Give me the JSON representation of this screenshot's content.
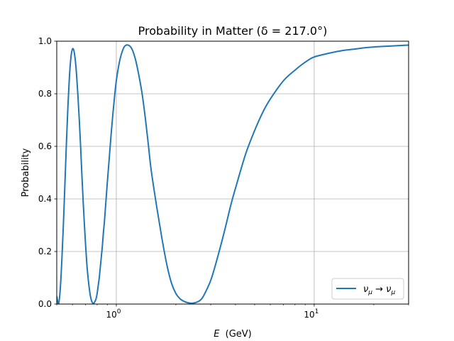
{
  "chart_data": {
    "type": "line",
    "title": "Probability in Matter (δ = 217.0°)",
    "xlabel": "E (GeV)",
    "xlabel_symbol": "E",
    "xlabel_unit": "(GeV)",
    "ylabel": "Probability",
    "x_scale": "log",
    "xlim": [
      0.5,
      30
    ],
    "ylim": [
      0,
      1
    ],
    "grid": true,
    "legend_position": "lower-right",
    "x_ticks": [
      {
        "value": 1,
        "base": "10",
        "exp": "0"
      },
      {
        "value": 10,
        "base": "10",
        "exp": "1"
      }
    ],
    "y_ticks": [
      {
        "value": 0,
        "label": "0.0"
      },
      {
        "value": 0.2,
        "label": "0.2"
      },
      {
        "value": 0.4,
        "label": "0.4"
      },
      {
        "value": 0.6,
        "label": "0.6"
      },
      {
        "value": 0.8,
        "label": "0.8"
      },
      {
        "value": 1,
        "label": "1.0"
      }
    ],
    "series": [
      {
        "name": "ν_μ → ν_μ",
        "legend_base": "ν",
        "legend_sub": "μ",
        "legend_arrow": " → ",
        "color": "#1f77b4",
        "x": [
          0.5,
          0.51,
          0.52,
          0.53,
          0.54,
          0.55,
          0.56,
          0.57,
          0.58,
          0.59,
          0.6,
          0.61,
          0.62,
          0.63,
          0.64,
          0.65,
          0.66,
          0.67,
          0.68,
          0.69,
          0.7,
          0.71,
          0.72,
          0.73,
          0.74,
          0.75,
          0.76,
          0.77,
          0.78,
          0.79,
          0.8,
          0.81,
          0.82,
          0.83,
          0.84,
          0.85,
          0.86,
          0.87,
          0.88,
          0.89,
          0.9,
          0.92,
          0.94,
          0.96,
          0.98,
          1.0,
          1.03,
          1.06,
          1.1,
          1.15,
          1.2,
          1.25,
          1.3,
          1.35,
          1.4,
          1.45,
          1.5,
          1.6,
          1.7,
          1.8,
          1.9,
          2.0,
          2.1,
          2.2,
          2.3,
          2.4,
          2.5,
          2.6,
          2.7,
          2.8,
          3.0,
          3.2,
          3.5,
          3.8,
          4.0,
          4.5,
          5.0,
          5.5,
          6.0,
          7.0,
          8.0,
          9.0,
          10.0,
          12.0,
          14.0,
          16.0,
          18.0,
          20.0,
          22.0,
          25.0,
          28.0,
          30.0
        ],
        "values": [
          0.03,
          0.0,
          0.05,
          0.16,
          0.3,
          0.46,
          0.62,
          0.76,
          0.87,
          0.94,
          0.97,
          0.965,
          0.93,
          0.87,
          0.79,
          0.7,
          0.6,
          0.49,
          0.39,
          0.3,
          0.22,
          0.15,
          0.1,
          0.06,
          0.03,
          0.012,
          0.004,
          0.003,
          0.01,
          0.02,
          0.04,
          0.07,
          0.1,
          0.14,
          0.18,
          0.22,
          0.27,
          0.31,
          0.36,
          0.41,
          0.46,
          0.55,
          0.64,
          0.72,
          0.79,
          0.85,
          0.91,
          0.95,
          0.98,
          0.985,
          0.97,
          0.93,
          0.87,
          0.8,
          0.71,
          0.61,
          0.51,
          0.37,
          0.25,
          0.15,
          0.08,
          0.04,
          0.02,
          0.01,
          0.005,
          0.003,
          0.005,
          0.01,
          0.02,
          0.04,
          0.09,
          0.16,
          0.27,
          0.38,
          0.44,
          0.57,
          0.66,
          0.73,
          0.78,
          0.85,
          0.89,
          0.92,
          0.94,
          0.955,
          0.965,
          0.97,
          0.975,
          0.978,
          0.98,
          0.982,
          0.984,
          0.985
        ]
      }
    ]
  }
}
